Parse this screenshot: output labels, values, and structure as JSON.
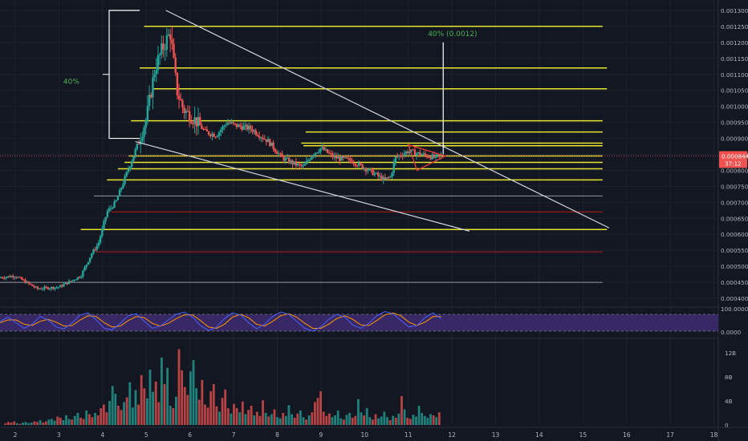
{
  "chart_data": {
    "type": "candlestick",
    "colors": {
      "background": "#131722",
      "grid": "#1e2230",
      "up": "#26a69a",
      "down": "#ef5350",
      "level_line": "#e6e62e",
      "red_level": "#b71c1c",
      "gray_level": "#9598a1",
      "trendline": "#d1d4dc",
      "annotation": "#4caf50",
      "price_tag": "#ef5350",
      "stoch_k": "#4a5fff",
      "stoch_d": "#ff9800",
      "stoch_band": "#3d2a6e"
    },
    "price_axis": {
      "ylim": [
        0.00038,
        0.00132
      ],
      "ticks": [
        "0.0004000",
        "0.0004500",
        "0.0005000",
        "0.0005500",
        "0.0006000",
        "0.0006500",
        "0.0007000",
        "0.0007500",
        "0.0008000",
        "0.0008500",
        "0.0009000",
        "0.0009500",
        "0.0010000",
        "0.0010500",
        "0.0011000",
        "0.0011500",
        "0.0012000",
        "0.0012500",
        "0.0013000"
      ]
    },
    "x_axis": {
      "xlim": [
        1.65,
        18.1
      ],
      "ticks": [
        "2",
        "3",
        "4",
        "5",
        "6",
        "7",
        "8",
        "9",
        "10",
        "11",
        "12",
        "13",
        "14",
        "15",
        "16",
        "17",
        "18"
      ]
    },
    "last_price": {
      "value": "0.0008449",
      "countdown": "37:12"
    },
    "price_path": [
      [
        1.65,
        0.000465
      ],
      [
        2.0,
        0.00047
      ],
      [
        2.5,
        0.00043
      ],
      [
        3.0,
        0.000435
      ],
      [
        3.5,
        0.00047
      ],
      [
        3.75,
        0.00054
      ],
      [
        3.9,
        0.00057
      ],
      [
        4.1,
        0.00067
      ],
      [
        4.3,
        0.0007
      ],
      [
        4.55,
        0.00079
      ],
      [
        4.8,
        0.00088
      ],
      [
        5.0,
        0.00096
      ],
      [
        5.2,
        0.00112
      ],
      [
        5.4,
        0.00119
      ],
      [
        5.55,
        0.00123
      ],
      [
        5.7,
        0.00105
      ],
      [
        5.85,
        0.00099
      ],
      [
        6.1,
        0.00096
      ],
      [
        6.35,
        0.00092
      ],
      [
        6.6,
        0.00091
      ],
      [
        6.85,
        0.00095
      ],
      [
        7.05,
        0.00094
      ],
      [
        7.4,
        0.00093
      ],
      [
        7.8,
        0.00089
      ],
      [
        8.1,
        0.00084
      ],
      [
        8.4,
        0.00082
      ],
      [
        8.6,
        0.00081
      ],
      [
        8.8,
        0.00085
      ],
      [
        9.0,
        0.00087
      ],
      [
        9.3,
        0.00084
      ],
      [
        9.7,
        0.00083
      ],
      [
        10.1,
        0.0008
      ],
      [
        10.45,
        0.00077
      ],
      [
        10.6,
        0.00078
      ],
      [
        10.7,
        0.00084
      ],
      [
        11.0,
        0.00086
      ],
      [
        11.3,
        0.00085
      ],
      [
        11.6,
        0.00084
      ],
      [
        11.75,
        0.000845
      ]
    ],
    "horizontal_levels": [
      {
        "price": 0.00125,
        "x1": 4.95,
        "x2": 15.45,
        "color": "yellow"
      },
      {
        "price": 0.00112,
        "x1": 4.85,
        "x2": 15.55,
        "color": "yellow"
      },
      {
        "price": 0.001055,
        "x1": 5.15,
        "x2": 15.55,
        "color": "yellow"
      },
      {
        "price": 0.000955,
        "x1": 4.65,
        "x2": 15.45,
        "color": "yellow"
      },
      {
        "price": 0.00092,
        "x1": 8.65,
        "x2": 15.45,
        "color": "yellow"
      },
      {
        "price": 0.000885,
        "x1": 8.55,
        "x2": 15.45,
        "color": "yellow"
      },
      {
        "price": 0.000877,
        "x1": 8.6,
        "x2": 15.45,
        "color": "yellow"
      },
      {
        "price": 0.000845,
        "x1": 4.6,
        "x2": 15.45,
        "color": "yellow"
      },
      {
        "price": 0.000825,
        "x1": 4.5,
        "x2": 15.45,
        "color": "yellow"
      },
      {
        "price": 0.000805,
        "x1": 4.35,
        "x2": 15.45,
        "color": "yellow"
      },
      {
        "price": 0.00077,
        "x1": 4.1,
        "x2": 15.45,
        "color": "yellow"
      },
      {
        "price": 0.00072,
        "x1": 3.8,
        "x2": 15.45,
        "color": "gray"
      },
      {
        "price": 0.00067,
        "x1": 4.2,
        "x2": 15.45,
        "color": "red"
      },
      {
        "price": 0.000615,
        "x1": 3.5,
        "x2": 15.55,
        "color": "yellow"
      },
      {
        "price": 0.000545,
        "x1": 3.85,
        "x2": 15.45,
        "color": "red"
      },
      {
        "price": 0.00045,
        "x1": 1.65,
        "x2": 15.45,
        "color": "gray"
      }
    ],
    "trendlines": [
      {
        "from": [
          5.45,
          0.0013
        ],
        "to": [
          15.6,
          0.00062
        ]
      },
      {
        "from": [
          4.75,
          0.00089
        ],
        "to": [
          12.4,
          0.00061
        ]
      }
    ],
    "vertical_markers": [
      {
        "x": 11.8,
        "from": 0.00085,
        "to": 0.0012
      }
    ],
    "bracket": {
      "x_left": 4.15,
      "x_right": 4.85,
      "top": 0.0013,
      "bottom": 0.0009
    },
    "triangle": {
      "points": [
        [
          11.0,
          0.00088
        ],
        [
          11.85,
          0.000845
        ],
        [
          11.2,
          0.0008
        ]
      ]
    },
    "annotations": [
      {
        "text": "40%",
        "x": 3.1,
        "price": 0.00107
      },
      {
        "text": "40% (0.0012)",
        "x": 11.45,
        "price": 0.00122
      }
    ],
    "stochastic": {
      "levels": {
        "top": "100.0000",
        "bottom": "0.0000"
      },
      "band": [
        20,
        80
      ],
      "k": [
        55,
        70,
        50,
        30,
        45,
        72,
        60,
        35,
        28,
        50,
        78,
        85,
        60,
        30,
        25,
        48,
        75,
        82,
        55,
        30,
        38,
        60,
        80,
        88,
        70,
        40,
        22,
        35,
        65,
        85,
        78,
        50,
        28,
        45,
        72,
        88,
        80,
        55,
        30,
        20,
        35,
        62,
        80,
        70,
        42,
        30,
        48,
        75,
        90,
        82,
        58,
        35,
        40,
        68,
        85,
        65
      ],
      "d": [
        50,
        60,
        60,
        45,
        40,
        55,
        62,
        52,
        38,
        40,
        60,
        75,
        72,
        50,
        35,
        38,
        58,
        72,
        68,
        48,
        38,
        48,
        65,
        78,
        78,
        58,
        35,
        30,
        45,
        70,
        80,
        68,
        45,
        38,
        55,
        75,
        82,
        70,
        48,
        30,
        30,
        45,
        65,
        75,
        62,
        42,
        40,
        58,
        78,
        85,
        75,
        52,
        40,
        52,
        72,
        72
      ],
      "x_start": 1.65,
      "x_end": 11.75
    },
    "volume": {
      "ticks": [
        "12B",
        "8B",
        "4B",
        "0"
      ],
      "ylim": [
        0,
        14
      ],
      "x_start": 1.75,
      "x_end": 11.75,
      "bars": [
        0.3,
        0.5,
        0.4,
        0.6,
        0.3,
        0.2,
        0.4,
        0.5,
        0.3,
        0.4,
        0.6,
        0.5,
        0.8,
        0.4,
        0.6,
        0.9,
        1.0,
        0.7,
        1.4,
        1.2,
        0.8,
        1.6,
        1.0,
        0.9,
        1.5,
        2.0,
        1.2,
        1.0,
        2.4,
        1.8,
        1.3,
        2.0,
        1.6,
        2.8,
        3.4,
        2.1,
        4.0,
        6.5,
        5.2,
        3.2,
        2.5,
        3.8,
        4.6,
        7.1,
        2.9,
        5.8,
        3.4,
        8.3,
        6.1,
        4.4,
        9.2,
        5.5,
        7.2,
        3.8,
        11.2,
        6.8,
        9.5,
        3.2,
        2.8,
        4.7,
        12.6,
        9.1,
        6.3,
        5.0,
        8.9,
        10.8,
        6.1,
        4.2,
        7.5,
        3.4,
        2.9,
        5.6,
        6.8,
        3.1,
        2.2,
        4.5,
        5.9,
        2.8,
        1.9,
        3.5,
        2.8,
        2.1,
        3.9,
        1.8,
        2.5,
        3.2,
        1.6,
        2.2,
        1.5,
        4.1,
        2.0,
        1.4,
        1.8,
        2.6,
        1.3,
        1.1,
        2.0,
        1.5,
        3.3,
        1.8,
        1.2,
        1.9,
        2.4,
        1.3,
        0.9,
        1.6,
        2.1,
        3.8,
        4.5,
        5.6,
        2.2,
        1.5,
        1.9,
        1.3,
        1.6,
        2.4,
        1.1,
        0.9,
        1.7,
        2.0,
        1.2,
        1.5,
        4.3,
        2.1,
        1.6,
        2.8,
        1.3,
        0.9,
        1.8,
        1.1,
        1.4,
        2.2,
        1.3,
        0.8,
        1.5,
        1.2,
        1.9,
        4.8,
        2.6,
        1.2,
        1.0,
        1.7,
        1.4,
        3.2,
        2.0,
        1.5,
        1.2,
        1.8,
        1.6,
        1.3,
        2.1
      ]
    }
  }
}
